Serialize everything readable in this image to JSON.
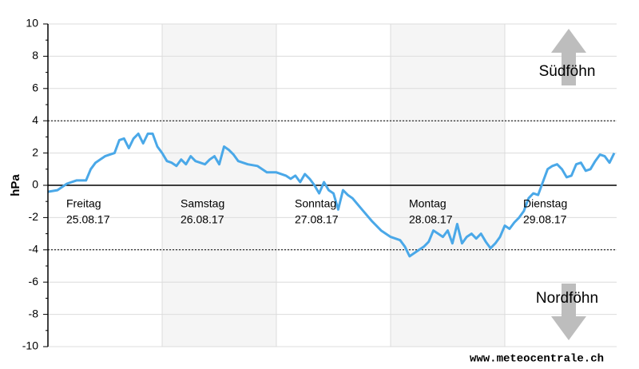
{
  "chart_data": {
    "type": "line",
    "ylabel": "hPa",
    "ylim": [
      -10,
      10
    ],
    "yticks": [
      -10,
      -8,
      -6,
      -4,
      -2,
      0,
      2,
      4,
      6,
      8,
      10
    ],
    "xlim": [
      0,
      119.5
    ],
    "grid": true,
    "color": "#4aa8e8",
    "reference_lines": [
      4,
      -4
    ],
    "shaded_days": [
      1,
      3
    ],
    "days": [
      {
        "label": "Freitag",
        "date": "25.08.17",
        "x": 0
      },
      {
        "label": "Samstag",
        "date": "26.08.17",
        "x": 24
      },
      {
        "label": "Sonntag",
        "date": "27.08.17",
        "x": 48
      },
      {
        "label": "Montag",
        "date": "28.08.17",
        "x": 72
      },
      {
        "label": "Dienstag",
        "date": "29.08.17",
        "x": 96
      }
    ],
    "x": [
      0,
      2,
      4,
      6,
      8,
      9,
      10,
      12,
      14,
      15,
      16,
      17,
      18,
      19,
      20,
      21,
      22,
      23,
      24,
      25,
      26,
      27,
      28,
      29,
      30,
      31,
      32,
      33,
      34,
      35,
      36,
      37,
      38,
      39,
      40,
      42,
      44,
      46,
      48,
      50,
      51,
      52,
      53,
      54,
      55,
      56,
      57,
      58,
      59,
      60,
      61,
      62,
      63,
      64,
      66,
      68,
      70,
      72,
      74,
      75,
      76,
      77,
      78,
      79,
      80,
      81,
      82,
      83,
      84,
      85,
      86,
      87,
      88,
      89,
      90,
      91,
      92,
      93,
      94,
      95,
      96,
      97,
      98,
      99,
      100,
      101,
      102,
      103,
      104,
      105,
      106,
      107,
      108,
      109,
      110,
      111,
      112,
      113,
      114,
      115,
      116,
      117,
      118,
      119
    ],
    "values": [
      -0.4,
      -0.3,
      0.1,
      0.3,
      0.3,
      1.0,
      1.4,
      1.8,
      2.0,
      2.8,
      2.9,
      2.3,
      2.9,
      3.2,
      2.6,
      3.2,
      3.2,
      2.4,
      2.0,
      1.5,
      1.4,
      1.2,
      1.6,
      1.3,
      1.8,
      1.5,
      1.4,
      1.3,
      1.6,
      1.8,
      1.3,
      2.4,
      2.2,
      1.9,
      1.5,
      1.3,
      1.2,
      0.8,
      0.8,
      0.6,
      0.4,
      0.6,
      0.2,
      0.7,
      0.4,
      0.0,
      -0.5,
      0.2,
      -0.3,
      -0.5,
      -1.5,
      -0.3,
      -0.6,
      -0.8,
      -1.5,
      -2.2,
      -2.8,
      -3.2,
      -3.4,
      -3.8,
      -4.4,
      -4.2,
      -4.0,
      -3.8,
      -3.5,
      -2.8,
      -3.0,
      -3.2,
      -2.8,
      -3.6,
      -2.4,
      -3.6,
      -3.2,
      -3.0,
      -3.3,
      -3.0,
      -3.5,
      -3.9,
      -3.6,
      -3.2,
      -2.5,
      -2.7,
      -2.3,
      -2.0,
      -1.6,
      -0.8,
      -0.5,
      -0.6,
      0.2,
      1.0,
      1.2,
      1.3,
      1.0,
      0.5,
      0.6,
      1.3,
      1.4,
      0.9,
      1.0,
      1.5,
      1.9,
      1.8,
      1.4,
      2.0
    ],
    "annotations": [
      "Südföhn",
      "Nordföhn"
    ],
    "source": "www.meteocentrale.ch"
  }
}
